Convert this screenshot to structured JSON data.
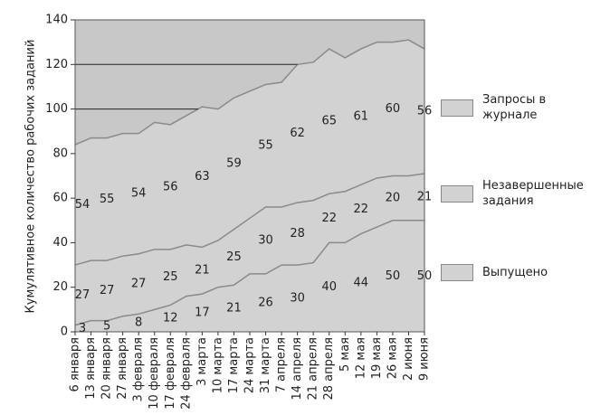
{
  "chart_data": {
    "type": "stacked_area",
    "y_label": "Кумулятивное количество рабочих заданий",
    "categories": [
      "6 января",
      "13 января",
      "20 января",
      "27 января",
      "3 февраля",
      "10 февраля",
      "17 февраля",
      "24 февраля",
      "3 марта",
      "10 марта",
      "17 марта",
      "24 марта",
      "31 марта",
      "7 апреля",
      "14 апреля",
      "21 апреля",
      "28 апреля",
      "5 мая",
      "12 мая",
      "19 мая",
      "26 мая",
      "2 июня",
      "9 июня"
    ],
    "series": [
      {
        "name": "Выпущено",
        "color": "#d2d2d2",
        "values": [
          3,
          5,
          5,
          7,
          8,
          10,
          12,
          16,
          17,
          20,
          21,
          26,
          26,
          30,
          30,
          31,
          40,
          40,
          44,
          47,
          50,
          50,
          50
        ],
        "value_labels": [
          "3",
          null,
          "5",
          null,
          "8",
          null,
          "12",
          null,
          "17",
          null,
          "21",
          null,
          "26",
          null,
          "30",
          null,
          "40",
          null,
          "44",
          null,
          "50",
          null,
          "50"
        ]
      },
      {
        "name": "Незавершенные задания",
        "color": "#d2d2d2",
        "values": [
          27,
          27,
          27,
          27,
          27,
          27,
          25,
          23,
          21,
          21,
          25,
          25,
          30,
          26,
          28,
          28,
          22,
          23,
          22,
          22,
          20,
          20,
          21
        ],
        "value_labels": [
          "27",
          null,
          "27",
          null,
          "27",
          null,
          "25",
          null,
          "21",
          null,
          "25",
          null,
          "30",
          null,
          "28",
          null,
          "22",
          null,
          "22",
          null,
          "20",
          null,
          "21"
        ]
      },
      {
        "name": "Запросы в журнале",
        "color": "#d2d2d2",
        "values": [
          54,
          55,
          55,
          55,
          54,
          57,
          56,
          58,
          63,
          59,
          59,
          57,
          55,
          56,
          62,
          62,
          65,
          60,
          61,
          61,
          60,
          61,
          56
        ],
        "value_labels": [
          "54",
          null,
          "55",
          null,
          "54",
          null,
          "56",
          null,
          "63",
          null,
          "59",
          null,
          "55",
          null,
          "62",
          null,
          "65",
          null,
          "61",
          null,
          "60",
          null,
          "56"
        ]
      }
    ],
    "ylim": [
      0,
      140
    ],
    "yticks": [
      0,
      20,
      40,
      60,
      80,
      100,
      120,
      140
    ],
    "reference_lines": [
      100,
      120
    ]
  }
}
